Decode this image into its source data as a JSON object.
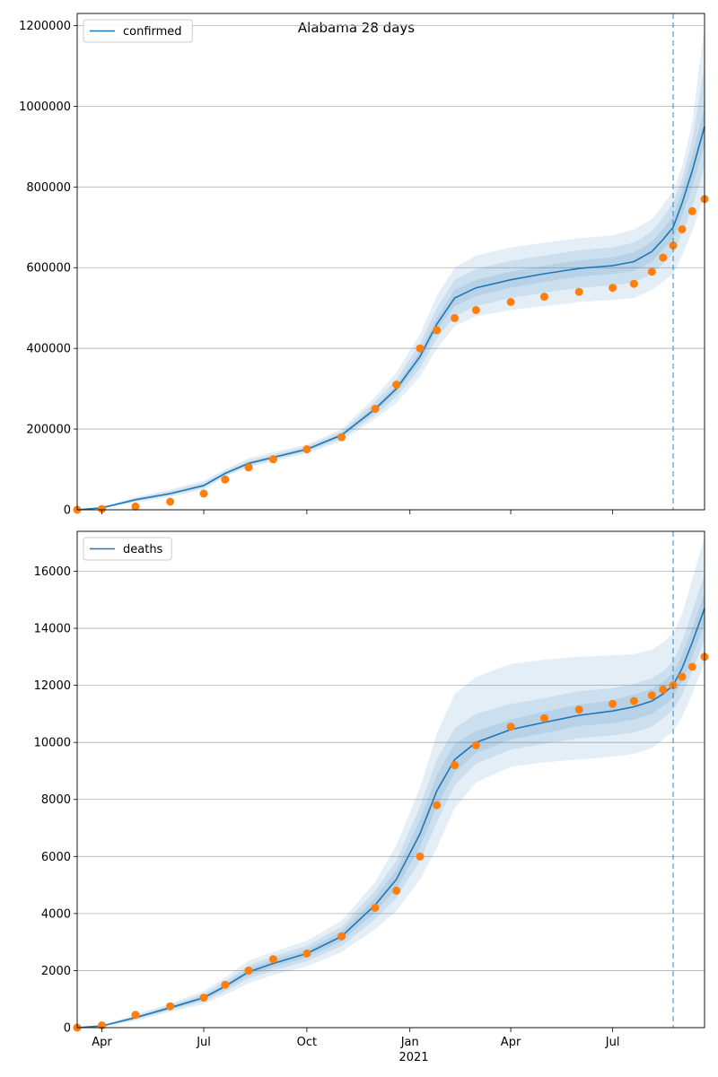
{
  "title": "Alabama 28 days",
  "colors": {
    "model": "#1f77b4",
    "observed": "#ff7f0e",
    "band": "#1f77b4",
    "grid": "#b0b0b0"
  },
  "x_ticks": [
    {
      "date": "2020-04-01",
      "label": "Apr"
    },
    {
      "date": "2020-07-01",
      "label": "Jul"
    },
    {
      "date": "2020-10-01",
      "label": "Oct"
    },
    {
      "date": "2021-01-01",
      "label": "Jan"
    },
    {
      "date": "2021-04-01",
      "label": "Apr"
    },
    {
      "date": "2021-07-01",
      "label": "Jul"
    }
  ],
  "x_year_label": "2021",
  "forecast_start": "2021-08-24",
  "chart_data": [
    {
      "type": "line",
      "legend": "confirmed",
      "legend_position": "upper left",
      "grid": "horizontal",
      "xlim": [
        "2020-03-10",
        "2021-09-21"
      ],
      "ylim": [
        0,
        1230000
      ],
      "y_ticks": [
        0,
        200000,
        400000,
        600000,
        800000,
        1000000,
        1200000
      ],
      "model": {
        "x": [
          "2020-03-10",
          "2020-04-01",
          "2020-05-01",
          "2020-06-01",
          "2020-07-01",
          "2020-07-20",
          "2020-08-10",
          "2020-09-01",
          "2020-10-01",
          "2020-11-01",
          "2020-12-01",
          "2020-12-20",
          "2021-01-10",
          "2021-01-25",
          "2021-02-10",
          "2021-03-01",
          "2021-04-01",
          "2021-05-01",
          "2021-06-01",
          "2021-07-01",
          "2021-07-20",
          "2021-08-05",
          "2021-08-15",
          "2021-08-24",
          "2021-09-01",
          "2021-09-10",
          "2021-09-21"
        ],
        "y": [
          0,
          5000,
          25000,
          40000,
          60000,
          90000,
          115000,
          130000,
          150000,
          185000,
          250000,
          300000,
          380000,
          460000,
          525000,
          550000,
          570000,
          585000,
          598000,
          605000,
          615000,
          640000,
          670000,
          700000,
          760000,
          840000,
          950000
        ],
        "bands": [
          {
            "lower": [
              0,
              3000,
              18000,
              32000,
              50000,
              82000,
              105000,
              120000,
              140000,
              170000,
              225000,
              265000,
              330000,
              400000,
              455000,
              480000,
              495000,
              505000,
              515000,
              520000,
              525000,
              545000,
              565000,
              585000,
              630000,
              690000,
              780000
            ],
            "upper": [
              0,
              7000,
              32000,
              50000,
              72000,
              100000,
              128000,
              143000,
              162000,
              200000,
              280000,
              340000,
              435000,
              530000,
              600000,
              630000,
              650000,
              662000,
              673000,
              680000,
              695000,
              720000,
              755000,
              790000,
              850000,
              960000,
              1200000
            ]
          },
          {
            "lower": [
              0,
              4000,
              21000,
              35000,
              54000,
              85000,
              109000,
              124000,
              144000,
              176000,
              235000,
              280000,
              350000,
              425000,
              480000,
              505000,
              525000,
              538000,
              550000,
              556000,
              563000,
              585000,
              610000,
              635000,
              685000,
              750000,
              850000
            ],
            "upper": [
              0,
              6000,
              29000,
              46000,
              67000,
              96000,
              122000,
              137000,
              157000,
              194000,
              268000,
              323000,
              412000,
              500000,
              570000,
              597000,
              617000,
              630000,
              643000,
              650000,
              662000,
              690000,
              725000,
              760000,
              820000,
              915000,
              1100000
            ]
          },
          {
            "lower": [
              0,
              4600,
              23500,
              38000,
              57500,
              88000,
              112500,
              127500,
              147500,
              181000,
              243000,
              292000,
              367000,
              445000,
              505000,
              530000,
              550000,
              565000,
              578000,
              584000,
              592000,
              615000,
              645000,
              672000,
              728000,
              800000,
              905000
            ],
            "upper": [
              0,
              5400,
              26500,
              42000,
              62500,
              92000,
              117500,
              132500,
              152500,
              189000,
              257000,
              308000,
              393000,
              475000,
              545000,
              570000,
              590000,
              605000,
              618000,
              626000,
              638000,
              665000,
              695000,
              728000,
              790000,
              880000,
              995000
            ]
          }
        ]
      },
      "observed": {
        "x": [
          "2020-03-10",
          "2020-04-01",
          "2020-05-01",
          "2020-06-01",
          "2020-07-01",
          "2020-07-20",
          "2020-08-10",
          "2020-09-01",
          "2020-10-01",
          "2020-11-01",
          "2020-12-01",
          "2020-12-20",
          "2021-01-10",
          "2021-01-25",
          "2021-02-10",
          "2021-03-01",
          "2021-04-01",
          "2021-05-01",
          "2021-06-01",
          "2021-07-01",
          "2021-07-20",
          "2021-08-05",
          "2021-08-15",
          "2021-08-24",
          "2021-09-01",
          "2021-09-10",
          "2021-09-21"
        ],
        "y": [
          0,
          2000,
          8000,
          20000,
          40000,
          75000,
          105000,
          125000,
          150000,
          180000,
          250000,
          310000,
          400000,
          445000,
          475000,
          495000,
          515000,
          528000,
          540000,
          550000,
          560000,
          590000,
          625000,
          655000,
          695000,
          740000,
          770000
        ]
      }
    },
    {
      "type": "line",
      "legend": "deaths",
      "legend_position": "upper left",
      "grid": "horizontal",
      "xlim": [
        "2020-03-10",
        "2021-09-21"
      ],
      "ylim": [
        0,
        17400
      ],
      "y_ticks": [
        0,
        2000,
        4000,
        6000,
        8000,
        10000,
        12000,
        14000,
        16000
      ],
      "model": {
        "x": [
          "2020-03-10",
          "2020-04-01",
          "2020-05-01",
          "2020-06-01",
          "2020-07-01",
          "2020-07-20",
          "2020-08-10",
          "2020-09-01",
          "2020-10-01",
          "2020-11-01",
          "2020-12-01",
          "2020-12-20",
          "2021-01-10",
          "2021-01-25",
          "2021-02-10",
          "2021-03-01",
          "2021-04-01",
          "2021-05-01",
          "2021-06-01",
          "2021-07-01",
          "2021-07-20",
          "2021-08-05",
          "2021-08-15",
          "2021-08-24",
          "2021-09-01",
          "2021-09-10",
          "2021-09-21"
        ],
        "y": [
          0,
          60,
          350,
          700,
          1050,
          1450,
          1950,
          2250,
          2600,
          3200,
          4300,
          5200,
          6800,
          8300,
          9400,
          10000,
          10450,
          10700,
          10950,
          11100,
          11250,
          11450,
          11700,
          12000,
          12600,
          13500,
          14700
        ],
        "bands": [
          {
            "lower": [
              0,
              30,
              240,
              550,
              820,
              1150,
              1550,
              1850,
              2150,
              2650,
              3450,
              4100,
              5200,
              6300,
              7700,
              8600,
              9150,
              9300,
              9400,
              9500,
              9600,
              9800,
              10100,
              10400,
              10900,
              11700,
              12800
            ],
            "upper": [
              0,
              90,
              460,
              850,
              1280,
              1750,
              2350,
              2650,
              3050,
              3750,
              5100,
              6400,
              8400,
              10300,
              11700,
              12300,
              12750,
              12900,
              13000,
              13050,
              13100,
              13250,
              13500,
              13800,
              14500,
              15700,
              17200
            ]
          },
          {
            "lower": [
              0,
              40,
              280,
              610,
              920,
              1270,
              1720,
              2000,
              2330,
              2860,
              3800,
              4550,
              5850,
              7200,
              8500,
              9250,
              9750,
              9950,
              10150,
              10250,
              10350,
              10550,
              10850,
              11150,
              11650,
              12500,
              13600
            ],
            "upper": [
              0,
              80,
              420,
              790,
              1180,
              1630,
              2180,
              2500,
              2870,
              3540,
              4800,
              5850,
              7750,
              9400,
              10500,
              11000,
              11350,
              11550,
              11800,
              11900,
              12050,
              12250,
              12500,
              12850,
              13550,
              14600,
              15900
            ]
          },
          {
            "lower": [
              0,
              50,
              315,
              655,
              985,
              1370,
              1835,
              2125,
              2465,
              3030,
              4050,
              4875,
              6325,
              7750,
              8950,
              9625,
              10100,
              10325,
              10575,
              10675,
              10800,
              11000,
              11275,
              11575,
              12125,
              13000,
              14150
            ],
            "upper": [
              0,
              70,
              385,
              745,
              1115,
              1530,
              2065,
              2375,
              2735,
              3370,
              4550,
              5525,
              7275,
              8850,
              9950,
              10400,
              10800,
              11075,
              11325,
              11475,
              11675,
              11875,
              12125,
              12425,
              13075,
              14000,
              15250
            ]
          }
        ]
      },
      "observed": {
        "x": [
          "2020-03-10",
          "2020-04-01",
          "2020-05-01",
          "2020-06-01",
          "2020-07-01",
          "2020-07-20",
          "2020-08-10",
          "2020-09-01",
          "2020-10-01",
          "2020-11-01",
          "2020-12-01",
          "2020-12-20",
          "2021-01-10",
          "2021-01-25",
          "2021-02-10",
          "2021-03-01",
          "2021-04-01",
          "2021-05-01",
          "2021-06-01",
          "2021-07-01",
          "2021-07-20",
          "2021-08-05",
          "2021-08-15",
          "2021-08-24",
          "2021-09-01",
          "2021-09-10",
          "2021-09-21"
        ],
        "y": [
          0,
          80,
          450,
          750,
          1050,
          1500,
          2000,
          2400,
          2600,
          3200,
          4200,
          4800,
          6000,
          7800,
          9200,
          9900,
          10550,
          10850,
          11150,
          11350,
          11450,
          11650,
          11850,
          12000,
          12300,
          12650,
          13000
        ]
      }
    }
  ]
}
